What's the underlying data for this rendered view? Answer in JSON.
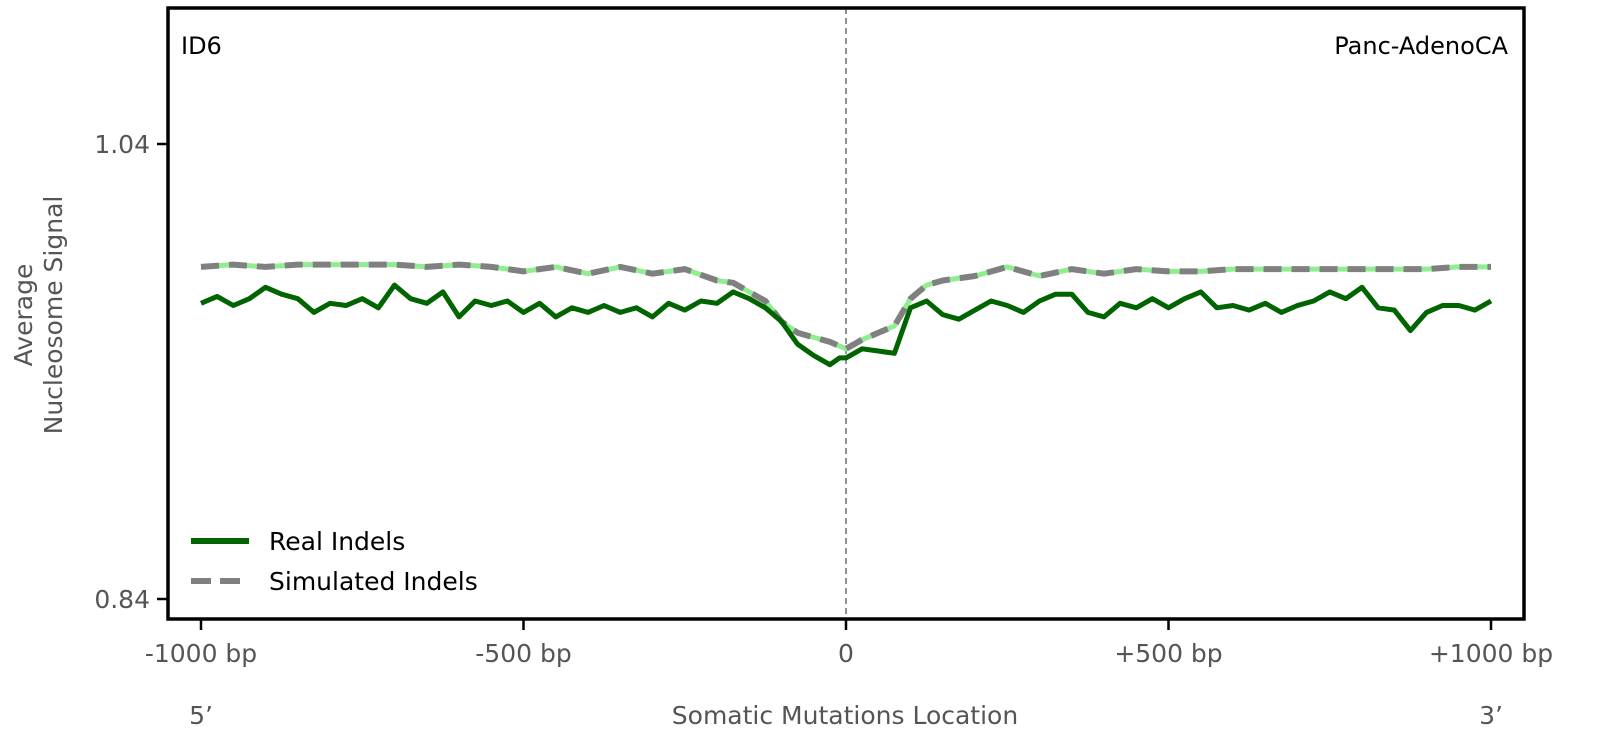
{
  "chart_data": {
    "type": "line",
    "panel_label_left": "ID6",
    "panel_label_right": "Panc-AdenoCA",
    "xlabel": "Somatic Mutations Location",
    "ylabel_lines": [
      "Average",
      "Nucleosome Signal"
    ],
    "end_labels": {
      "left": "5’",
      "right": "3’"
    },
    "xlim": [
      -1000,
      1000
    ],
    "ylim": [
      0.84,
      1.04
    ],
    "x_ticks": [
      {
        "value": -1000,
        "label": "-1000 bp"
      },
      {
        "value": -500,
        "label": "-500 bp"
      },
      {
        "value": 0,
        "label": "0"
      },
      {
        "value": 500,
        "label": "+500 bp"
      },
      {
        "value": 1000,
        "label": "+1000 bp"
      }
    ],
    "y_ticks": [
      {
        "value": 1.04,
        "label": "1.04"
      },
      {
        "value": 0.84,
        "label": "0.84"
      }
    ],
    "vertical_reference_line": 0,
    "grid": false,
    "legend_placement": "lower-left",
    "series": [
      {
        "name": "Real Indels",
        "color": "#006400",
        "style": "solid",
        "x": [
          -1000,
          -975,
          -950,
          -925,
          -900,
          -875,
          -850,
          -825,
          -800,
          -775,
          -750,
          -725,
          -700,
          -675,
          -650,
          -625,
          -600,
          -575,
          -550,
          -525,
          -500,
          -475,
          -450,
          -425,
          -400,
          -375,
          -350,
          -325,
          -300,
          -275,
          -250,
          -225,
          -200,
          -175,
          -150,
          -125,
          -100,
          -75,
          -50,
          -25,
          -10,
          0,
          25,
          50,
          75,
          100,
          125,
          150,
          175,
          200,
          225,
          250,
          275,
          300,
          325,
          350,
          375,
          400,
          425,
          450,
          475,
          500,
          525,
          550,
          575,
          600,
          625,
          650,
          675,
          700,
          725,
          750,
          775,
          800,
          825,
          850,
          875,
          900,
          925,
          950,
          975,
          1000
        ],
        "y": [
          0.97,
          0.973,
          0.969,
          0.972,
          0.977,
          0.974,
          0.972,
          0.966,
          0.97,
          0.969,
          0.972,
          0.968,
          0.978,
          0.972,
          0.97,
          0.975,
          0.964,
          0.971,
          0.969,
          0.971,
          0.966,
          0.97,
          0.964,
          0.968,
          0.966,
          0.969,
          0.966,
          0.968,
          0.964,
          0.97,
          0.967,
          0.971,
          0.97,
          0.975,
          0.972,
          0.968,
          0.962,
          0.952,
          0.947,
          0.943,
          0.946,
          0.946,
          0.95,
          0.949,
          0.948,
          0.968,
          0.971,
          0.965,
          0.963,
          0.967,
          0.971,
          0.969,
          0.966,
          0.971,
          0.974,
          0.974,
          0.966,
          0.964,
          0.97,
          0.968,
          0.972,
          0.968,
          0.972,
          0.975,
          0.968,
          0.969,
          0.967,
          0.97,
          0.966,
          0.969,
          0.971,
          0.975,
          0.972,
          0.977,
          0.968,
          0.967,
          0.958,
          0.966,
          0.969,
          0.969,
          0.967,
          0.971
        ]
      },
      {
        "name": "Simulated Indels",
        "color": "#808080",
        "style": "dashed",
        "gap_color": "#90ee90",
        "x": [
          -1000,
          -950,
          -900,
          -850,
          -800,
          -750,
          -700,
          -650,
          -600,
          -550,
          -500,
          -450,
          -400,
          -350,
          -300,
          -250,
          -200,
          -175,
          -150,
          -125,
          -100,
          -75,
          -50,
          -25,
          0,
          25,
          50,
          75,
          100,
          125,
          150,
          200,
          250,
          300,
          350,
          400,
          450,
          500,
          550,
          600,
          650,
          700,
          750,
          800,
          850,
          900,
          950,
          1000
        ],
        "y": [
          0.986,
          0.987,
          0.986,
          0.987,
          0.987,
          0.987,
          0.987,
          0.986,
          0.987,
          0.986,
          0.984,
          0.986,
          0.983,
          0.986,
          0.983,
          0.985,
          0.98,
          0.979,
          0.975,
          0.971,
          0.962,
          0.957,
          0.955,
          0.953,
          0.95,
          0.954,
          0.957,
          0.96,
          0.972,
          0.978,
          0.98,
          0.982,
          0.986,
          0.982,
          0.985,
          0.983,
          0.985,
          0.984,
          0.984,
          0.985,
          0.985,
          0.985,
          0.985,
          0.985,
          0.985,
          0.985,
          0.986,
          0.986
        ]
      }
    ]
  }
}
